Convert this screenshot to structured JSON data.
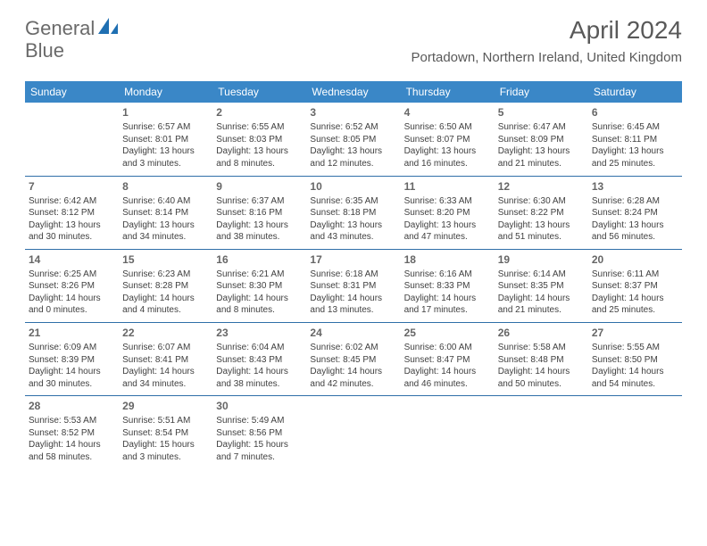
{
  "brand": {
    "name_part1": "General",
    "name_part2": "Blue",
    "text_color": "#6a6a6a",
    "icon_color": "#1f6fb2"
  },
  "title": {
    "month_year": "April 2024",
    "location": "Portadown, Northern Ireland, United Kingdom",
    "title_fontsize": 28,
    "location_fontsize": 15,
    "color": "#595959"
  },
  "calendar": {
    "header_bg": "#3a87c7",
    "header_text_color": "#ffffff",
    "row_border_color": "#2f6fa8",
    "cell_text_color": "#404040",
    "daynum_color": "#666666",
    "days": [
      "Sunday",
      "Monday",
      "Tuesday",
      "Wednesday",
      "Thursday",
      "Friday",
      "Saturday"
    ],
    "weeks": [
      [
        null,
        {
          "n": "1",
          "sr": "Sunrise: 6:57 AM",
          "ss": "Sunset: 8:01 PM",
          "d1": "Daylight: 13 hours",
          "d2": "and 3 minutes."
        },
        {
          "n": "2",
          "sr": "Sunrise: 6:55 AM",
          "ss": "Sunset: 8:03 PM",
          "d1": "Daylight: 13 hours",
          "d2": "and 8 minutes."
        },
        {
          "n": "3",
          "sr": "Sunrise: 6:52 AM",
          "ss": "Sunset: 8:05 PM",
          "d1": "Daylight: 13 hours",
          "d2": "and 12 minutes."
        },
        {
          "n": "4",
          "sr": "Sunrise: 6:50 AM",
          "ss": "Sunset: 8:07 PM",
          "d1": "Daylight: 13 hours",
          "d2": "and 16 minutes."
        },
        {
          "n": "5",
          "sr": "Sunrise: 6:47 AM",
          "ss": "Sunset: 8:09 PM",
          "d1": "Daylight: 13 hours",
          "d2": "and 21 minutes."
        },
        {
          "n": "6",
          "sr": "Sunrise: 6:45 AM",
          "ss": "Sunset: 8:11 PM",
          "d1": "Daylight: 13 hours",
          "d2": "and 25 minutes."
        }
      ],
      [
        {
          "n": "7",
          "sr": "Sunrise: 6:42 AM",
          "ss": "Sunset: 8:12 PM",
          "d1": "Daylight: 13 hours",
          "d2": "and 30 minutes."
        },
        {
          "n": "8",
          "sr": "Sunrise: 6:40 AM",
          "ss": "Sunset: 8:14 PM",
          "d1": "Daylight: 13 hours",
          "d2": "and 34 minutes."
        },
        {
          "n": "9",
          "sr": "Sunrise: 6:37 AM",
          "ss": "Sunset: 8:16 PM",
          "d1": "Daylight: 13 hours",
          "d2": "and 38 minutes."
        },
        {
          "n": "10",
          "sr": "Sunrise: 6:35 AM",
          "ss": "Sunset: 8:18 PM",
          "d1": "Daylight: 13 hours",
          "d2": "and 43 minutes."
        },
        {
          "n": "11",
          "sr": "Sunrise: 6:33 AM",
          "ss": "Sunset: 8:20 PM",
          "d1": "Daylight: 13 hours",
          "d2": "and 47 minutes."
        },
        {
          "n": "12",
          "sr": "Sunrise: 6:30 AM",
          "ss": "Sunset: 8:22 PM",
          "d1": "Daylight: 13 hours",
          "d2": "and 51 minutes."
        },
        {
          "n": "13",
          "sr": "Sunrise: 6:28 AM",
          "ss": "Sunset: 8:24 PM",
          "d1": "Daylight: 13 hours",
          "d2": "and 56 minutes."
        }
      ],
      [
        {
          "n": "14",
          "sr": "Sunrise: 6:25 AM",
          "ss": "Sunset: 8:26 PM",
          "d1": "Daylight: 14 hours",
          "d2": "and 0 minutes."
        },
        {
          "n": "15",
          "sr": "Sunrise: 6:23 AM",
          "ss": "Sunset: 8:28 PM",
          "d1": "Daylight: 14 hours",
          "d2": "and 4 minutes."
        },
        {
          "n": "16",
          "sr": "Sunrise: 6:21 AM",
          "ss": "Sunset: 8:30 PM",
          "d1": "Daylight: 14 hours",
          "d2": "and 8 minutes."
        },
        {
          "n": "17",
          "sr": "Sunrise: 6:18 AM",
          "ss": "Sunset: 8:31 PM",
          "d1": "Daylight: 14 hours",
          "d2": "and 13 minutes."
        },
        {
          "n": "18",
          "sr": "Sunrise: 6:16 AM",
          "ss": "Sunset: 8:33 PM",
          "d1": "Daylight: 14 hours",
          "d2": "and 17 minutes."
        },
        {
          "n": "19",
          "sr": "Sunrise: 6:14 AM",
          "ss": "Sunset: 8:35 PM",
          "d1": "Daylight: 14 hours",
          "d2": "and 21 minutes."
        },
        {
          "n": "20",
          "sr": "Sunrise: 6:11 AM",
          "ss": "Sunset: 8:37 PM",
          "d1": "Daylight: 14 hours",
          "d2": "and 25 minutes."
        }
      ],
      [
        {
          "n": "21",
          "sr": "Sunrise: 6:09 AM",
          "ss": "Sunset: 8:39 PM",
          "d1": "Daylight: 14 hours",
          "d2": "and 30 minutes."
        },
        {
          "n": "22",
          "sr": "Sunrise: 6:07 AM",
          "ss": "Sunset: 8:41 PM",
          "d1": "Daylight: 14 hours",
          "d2": "and 34 minutes."
        },
        {
          "n": "23",
          "sr": "Sunrise: 6:04 AM",
          "ss": "Sunset: 8:43 PM",
          "d1": "Daylight: 14 hours",
          "d2": "and 38 minutes."
        },
        {
          "n": "24",
          "sr": "Sunrise: 6:02 AM",
          "ss": "Sunset: 8:45 PM",
          "d1": "Daylight: 14 hours",
          "d2": "and 42 minutes."
        },
        {
          "n": "25",
          "sr": "Sunrise: 6:00 AM",
          "ss": "Sunset: 8:47 PM",
          "d1": "Daylight: 14 hours",
          "d2": "and 46 minutes."
        },
        {
          "n": "26",
          "sr": "Sunrise: 5:58 AM",
          "ss": "Sunset: 8:48 PM",
          "d1": "Daylight: 14 hours",
          "d2": "and 50 minutes."
        },
        {
          "n": "27",
          "sr": "Sunrise: 5:55 AM",
          "ss": "Sunset: 8:50 PM",
          "d1": "Daylight: 14 hours",
          "d2": "and 54 minutes."
        }
      ],
      [
        {
          "n": "28",
          "sr": "Sunrise: 5:53 AM",
          "ss": "Sunset: 8:52 PM",
          "d1": "Daylight: 14 hours",
          "d2": "and 58 minutes."
        },
        {
          "n": "29",
          "sr": "Sunrise: 5:51 AM",
          "ss": "Sunset: 8:54 PM",
          "d1": "Daylight: 15 hours",
          "d2": "and 3 minutes."
        },
        {
          "n": "30",
          "sr": "Sunrise: 5:49 AM",
          "ss": "Sunset: 8:56 PM",
          "d1": "Daylight: 15 hours",
          "d2": "and 7 minutes."
        },
        null,
        null,
        null,
        null
      ]
    ]
  }
}
